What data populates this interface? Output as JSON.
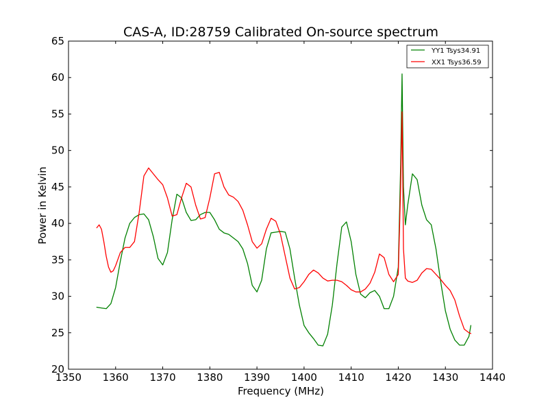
{
  "chart_data": {
    "type": "line",
    "title": "CAS-A, ID:28759 Calibrated On-source spectrum",
    "xlabel": "Frequency (MHz)",
    "ylabel": "Power in Kelvin",
    "xlim": [
      1350,
      1440
    ],
    "ylim": [
      20,
      65
    ],
    "xticks": [
      1350,
      1360,
      1370,
      1380,
      1390,
      1400,
      1410,
      1420,
      1430,
      1440
    ],
    "yticks": [
      20,
      25,
      30,
      35,
      40,
      45,
      50,
      55,
      60,
      65
    ],
    "grid": false,
    "legend_position": "top-right",
    "series": [
      {
        "name": "YY1 Tsys34.91",
        "color": "#008000",
        "x": [
          1356,
          1357,
          1358,
          1359,
          1360,
          1361,
          1362,
          1363,
          1364,
          1365,
          1366,
          1367,
          1368,
          1369,
          1370,
          1371,
          1372,
          1373,
          1374,
          1375,
          1376,
          1377,
          1378,
          1379,
          1380,
          1381,
          1382,
          1383,
          1384,
          1385,
          1386,
          1387,
          1388,
          1389,
          1390,
          1391,
          1392,
          1393,
          1394,
          1395,
          1396,
          1397,
          1398,
          1399,
          1400,
          1401,
          1402,
          1403,
          1404,
          1405,
          1406,
          1407,
          1408,
          1409,
          1410,
          1411,
          1412,
          1413,
          1414,
          1415,
          1416,
          1417,
          1418,
          1419,
          1420,
          1420.5,
          1420.8,
          1421.1,
          1421.5,
          1422,
          1423,
          1424,
          1425,
          1426,
          1427,
          1428,
          1429,
          1430,
          1431,
          1432,
          1433,
          1434,
          1435,
          1435.4
        ],
        "values": [
          28.5,
          28.4,
          28.3,
          29.0,
          31.2,
          34.8,
          38.0,
          40.0,
          40.8,
          41.2,
          41.3,
          40.5,
          38.2,
          35.2,
          34.3,
          36.0,
          40.5,
          44.0,
          43.5,
          41.5,
          40.4,
          40.5,
          41.2,
          41.5,
          41.5,
          40.5,
          39.2,
          38.7,
          38.5,
          38.0,
          37.5,
          36.5,
          34.5,
          31.5,
          30.6,
          32.2,
          36.5,
          38.7,
          38.8,
          38.9,
          38.8,
          36.5,
          32.5,
          28.8,
          26.0,
          25.0,
          24.2,
          23.3,
          23.2,
          24.8,
          28.8,
          34.5,
          39.5,
          40.2,
          37.5,
          33.0,
          30.3,
          29.8,
          30.5,
          30.8,
          30.0,
          28.3,
          28.3,
          30.0,
          34.0,
          48.0,
          60.5,
          45.0,
          39.8,
          42.5,
          46.8,
          46.0,
          42.5,
          40.5,
          39.8,
          36.5,
          32.0,
          28.0,
          25.5,
          24.0,
          23.3,
          23.3,
          24.5,
          26.0
        ]
      },
      {
        "name": "XX1 Tsys36.59",
        "color": "#ff0000",
        "x": [
          1356,
          1356.5,
          1357,
          1357.5,
          1358,
          1358.5,
          1359,
          1359.5,
          1360,
          1361,
          1362,
          1363,
          1364,
          1365,
          1366,
          1367,
          1368,
          1369,
          1370,
          1371,
          1372,
          1373,
          1374,
          1375,
          1376,
          1377,
          1378,
          1379,
          1380,
          1381,
          1382,
          1383,
          1384,
          1385,
          1386,
          1387,
          1388,
          1389,
          1390,
          1391,
          1392,
          1393,
          1394,
          1395,
          1396,
          1397,
          1398,
          1399,
          1400,
          1401,
          1402,
          1403,
          1404,
          1405,
          1406,
          1407,
          1408,
          1409,
          1410,
          1411,
          1412,
          1413,
          1414,
          1415,
          1416,
          1417,
          1418,
          1419,
          1420,
          1420.5,
          1420.8,
          1421.1,
          1421.5,
          1422,
          1423,
          1424,
          1425,
          1426,
          1427,
          1428,
          1429,
          1430,
          1431,
          1432,
          1433,
          1434,
          1435,
          1435.4
        ],
        "values": [
          39.4,
          39.8,
          39.2,
          37.5,
          35.5,
          34.0,
          33.3,
          33.5,
          34.2,
          36.0,
          36.7,
          36.7,
          37.5,
          41.5,
          46.5,
          47.6,
          46.8,
          46.0,
          45.3,
          43.5,
          41.0,
          41.2,
          43.5,
          45.5,
          45.0,
          42.5,
          40.6,
          40.8,
          43.5,
          46.8,
          47.0,
          45.0,
          43.9,
          43.6,
          43.0,
          41.8,
          39.8,
          37.5,
          36.6,
          37.2,
          39.2,
          40.7,
          40.3,
          38.5,
          35.5,
          32.5,
          31.0,
          31.2,
          32.0,
          33.0,
          33.6,
          33.2,
          32.5,
          32.1,
          32.2,
          32.2,
          32.0,
          31.5,
          30.9,
          30.6,
          30.6,
          31.0,
          31.8,
          33.3,
          35.8,
          35.3,
          33.0,
          32.0,
          33.0,
          45.0,
          55.3,
          36.5,
          32.5,
          32.1,
          31.9,
          32.2,
          33.2,
          33.8,
          33.7,
          33.0,
          32.3,
          31.5,
          30.8,
          29.5,
          27.3,
          25.5,
          25.0,
          24.9
        ]
      }
    ]
  }
}
